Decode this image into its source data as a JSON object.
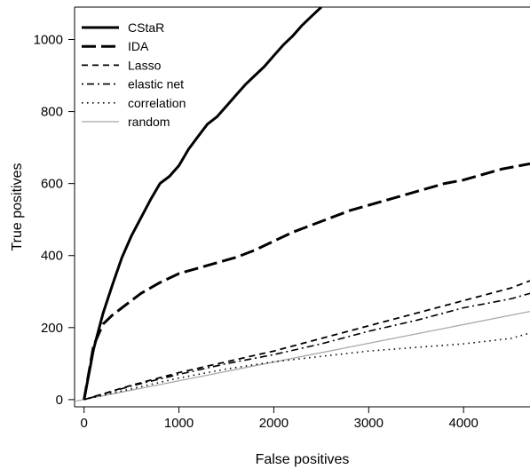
{
  "chart_data": {
    "type": "line",
    "xlabel": "False positives",
    "ylabel": "True positives",
    "xlim": [
      -100,
      4700
    ],
    "ylim": [
      -20,
      1090
    ],
    "x_ticks": [
      0,
      1000,
      2000,
      3000,
      4000
    ],
    "y_ticks": [
      0,
      200,
      400,
      600,
      800,
      1000
    ],
    "grid": false,
    "legend_position": "top-left",
    "series": [
      {
        "name": "CStaR",
        "line_style": "solid-thick",
        "color": "#000000",
        "x": [
          0,
          100,
          200,
          300,
          400,
          500,
          600,
          700,
          800,
          900,
          1000,
          1100,
          1200,
          1300,
          1400,
          1500,
          1600,
          1700,
          1800,
          1900,
          2000,
          2100,
          2200,
          2300,
          2400,
          2500
        ],
        "y": [
          0,
          140,
          240,
          320,
          395,
          455,
          505,
          555,
          600,
          620,
          650,
          695,
          730,
          765,
          785,
          815,
          845,
          875,
          900,
          925,
          955,
          985,
          1010,
          1040,
          1065,
          1090
        ]
      },
      {
        "name": "IDA",
        "line_style": "long-dash-thick",
        "color": "#000000",
        "x": [
          0,
          100,
          200,
          300,
          400,
          500,
          600,
          800,
          1000,
          1200,
          1400,
          1600,
          1800,
          2000,
          2200,
          2400,
          2600,
          2800,
          3000,
          3200,
          3400,
          3600,
          3800,
          4000,
          4200,
          4400,
          4600,
          4700
        ],
        "y": [
          0,
          150,
          210,
          235,
          255,
          275,
          295,
          325,
          350,
          365,
          380,
          395,
          415,
          440,
          465,
          485,
          505,
          525,
          540,
          555,
          570,
          585,
          600,
          610,
          625,
          640,
          650,
          655
        ]
      },
      {
        "name": "Lasso",
        "line_style": "dashed",
        "color": "#000000",
        "x": [
          0,
          500,
          1000,
          1500,
          2000,
          2500,
          3000,
          3500,
          4000,
          4500,
          4700
        ],
        "y": [
          0,
          40,
          75,
          105,
          135,
          170,
          205,
          240,
          275,
          310,
          330
        ]
      },
      {
        "name": "elastic net",
        "line_style": "dot-dash",
        "color": "#000000",
        "x": [
          0,
          500,
          1000,
          1500,
          2000,
          2500,
          3000,
          3500,
          4000,
          4500,
          4700
        ],
        "y": [
          0,
          38,
          70,
          100,
          125,
          155,
          190,
          220,
          255,
          280,
          295
        ]
      },
      {
        "name": "correlation",
        "line_style": "dotted",
        "color": "#000000",
        "x": [
          0,
          500,
          1000,
          1500,
          2000,
          2500,
          3000,
          3500,
          4000,
          4500,
          4700
        ],
        "y": [
          0,
          30,
          60,
          85,
          105,
          120,
          135,
          145,
          155,
          170,
          185
        ]
      },
      {
        "name": "random",
        "line_style": "solid-thin",
        "color": "#a8a8a8",
        "x": [
          -100,
          4700
        ],
        "y": [
          -5,
          245
        ]
      }
    ]
  }
}
